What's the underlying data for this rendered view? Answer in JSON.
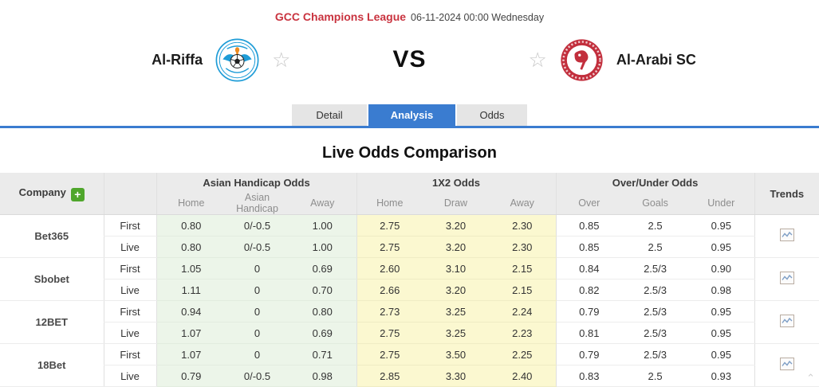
{
  "match": {
    "league": "GCC Champions League",
    "datetime": "06-11-2024 00:00 Wednesday",
    "home": {
      "name": "Al-Riffa"
    },
    "away": {
      "name": "Al-Arabi SC"
    },
    "vs": "VS"
  },
  "tabs": [
    {
      "label": "Detail",
      "active": false
    },
    {
      "label": "Analysis",
      "active": true
    },
    {
      "label": "Odds",
      "active": false
    }
  ],
  "section_title": "Live Odds Comparison",
  "labels": {
    "plus": "+",
    "star": "☆",
    "back_top": "⌃"
  },
  "odds_table": {
    "company_header": "Company",
    "trends_header": "Trends",
    "groups": [
      {
        "label": "Asian Handicap Odds",
        "columns": [
          "Home",
          "Asian Handicap",
          "Away"
        ]
      },
      {
        "label": "1X2 Odds",
        "columns": [
          "Home",
          "Draw",
          "Away"
        ]
      },
      {
        "label": "Over/Under Odds",
        "columns": [
          "Over",
          "Goals",
          "Under"
        ]
      }
    ],
    "companies": [
      {
        "name": "Bet365",
        "rows": [
          {
            "type": "First",
            "asian_handicap": [
              "0.80",
              "0/-0.5",
              "1.00"
            ],
            "one_x_two": [
              "2.75",
              "3.20",
              "2.30"
            ],
            "over_under": [
              "0.85",
              "2.5",
              "0.95"
            ]
          },
          {
            "type": "Live",
            "asian_handicap": [
              "0.80",
              "0/-0.5",
              "1.00"
            ],
            "one_x_two": [
              "2.75",
              "3.20",
              "2.30"
            ],
            "over_under": [
              "0.85",
              "2.5",
              "0.95"
            ]
          }
        ]
      },
      {
        "name": "Sbobet",
        "rows": [
          {
            "type": "First",
            "asian_handicap": [
              "1.05",
              "0",
              "0.69"
            ],
            "one_x_two": [
              "2.60",
              "3.10",
              "2.15"
            ],
            "over_under": [
              "0.84",
              "2.5/3",
              "0.90"
            ]
          },
          {
            "type": "Live",
            "asian_handicap": [
              "1.11",
              "0",
              "0.70"
            ],
            "one_x_two": [
              "2.66",
              "3.20",
              "2.15"
            ],
            "over_under": [
              "0.82",
              "2.5/3",
              "0.98"
            ]
          }
        ]
      },
      {
        "name": "12BET",
        "rows": [
          {
            "type": "First",
            "asian_handicap": [
              "0.94",
              "0",
              "0.80"
            ],
            "one_x_two": [
              "2.73",
              "3.25",
              "2.24"
            ],
            "over_under": [
              "0.79",
              "2.5/3",
              "0.95"
            ]
          },
          {
            "type": "Live",
            "asian_handicap": [
              "1.07",
              "0",
              "0.69"
            ],
            "one_x_two": [
              "2.75",
              "3.25",
              "2.23"
            ],
            "over_under": [
              "0.81",
              "2.5/3",
              "0.95"
            ]
          }
        ]
      },
      {
        "name": "18Bet",
        "rows": [
          {
            "type": "First",
            "asian_handicap": [
              "1.07",
              "0",
              "0.71"
            ],
            "one_x_two": [
              "2.75",
              "3.50",
              "2.25"
            ],
            "over_under": [
              "0.79",
              "2.5/3",
              "0.95"
            ]
          },
          {
            "type": "Live",
            "asian_handicap": [
              "0.79",
              "0/-0.5",
              "0.98"
            ],
            "one_x_two": [
              "2.85",
              "3.30",
              "2.40"
            ],
            "over_under": [
              "0.83",
              "2.5",
              "0.93"
            ]
          }
        ]
      }
    ]
  },
  "colors": {
    "accent_blue": "#3a7cd0",
    "league_red": "#c9333f",
    "handicap_bg": "#ecf5e9",
    "one_x_two_bg": "#fbf8d0",
    "add_button_green": "#4fa62c",
    "header_bg": "#ebebeb"
  }
}
